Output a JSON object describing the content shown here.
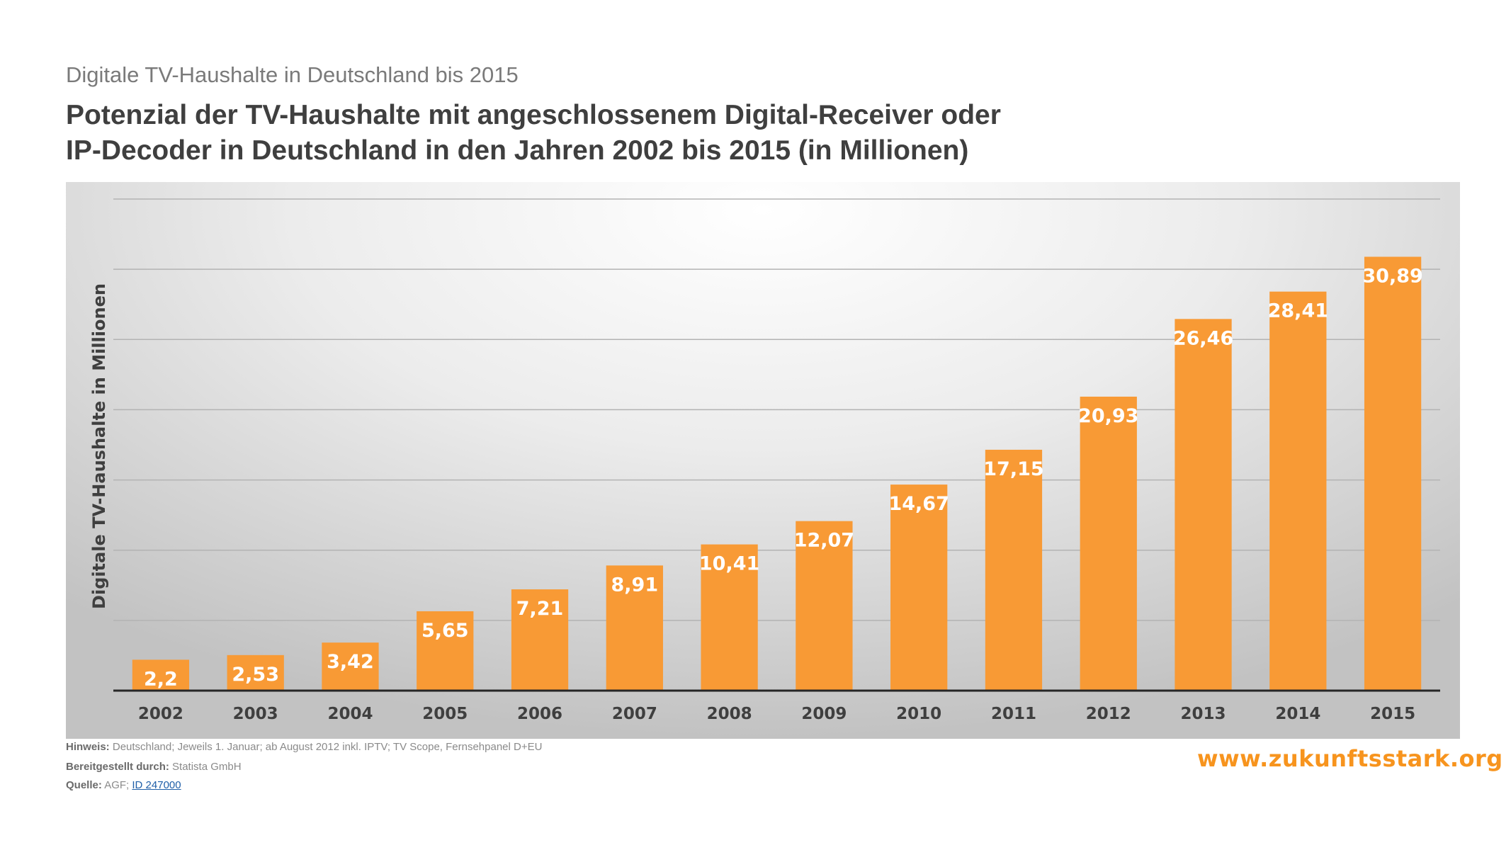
{
  "header": {
    "subtitle": "Digitale TV-Haushalte in Deutschland bis 2015",
    "title_line1": "Potenzial der TV-Haushalte mit angeschlossenem Digital-Receiver oder",
    "title_line2": "IP-Decoder in Deutschland in den Jahren 2002 bis 2015 (in Millionen)"
  },
  "chart_data": {
    "type": "bar",
    "title": "Potenzial der TV-Haushalte mit angeschlossenem Digital-Receiver oder IP-Decoder in Deutschland in den Jahren 2002 bis 2015 (in Millionen)",
    "subtitle": "Digitale TV-Haushalte in Deutschland bis 2015",
    "xlabel": "",
    "ylabel": "Digitale TV-Haushalte in Millionen",
    "categories": [
      "2002",
      "2003",
      "2004",
      "2005",
      "2006",
      "2007",
      "2008",
      "2009",
      "2010",
      "2011",
      "2012",
      "2013",
      "2014",
      "2015"
    ],
    "values": [
      2.2,
      2.53,
      3.42,
      5.65,
      7.21,
      8.91,
      10.41,
      12.07,
      14.67,
      17.15,
      20.93,
      26.46,
      28.41,
      30.89
    ],
    "value_labels": [
      "2,2",
      "2,53",
      "3,42",
      "5,65",
      "7,21",
      "8,91",
      "10,41",
      "12,07",
      "14,67",
      "17,15",
      "20,93",
      "26,46",
      "28,41",
      "30,89"
    ],
    "ylim": [
      0,
      35
    ],
    "gridlines": [
      5,
      10,
      15,
      20,
      25,
      30,
      35
    ],
    "grid": true,
    "legend": "none",
    "bar_color": "#f89a35",
    "label_color": "#ffffff"
  },
  "footer": {
    "note_label": "Hinweis:",
    "note_text": "Deutschland; Jeweils 1. Januar; ab August 2012 inkl. IPTV; TV Scope, Fernsehpanel D+EU",
    "provided_label": "Bereitgestellt durch:",
    "provided_text": "Statista GmbH",
    "source_label": "Quelle:",
    "source_text": "AGF;",
    "source_link": "ID 247000"
  },
  "brand": "www.zukunftsstark.org"
}
